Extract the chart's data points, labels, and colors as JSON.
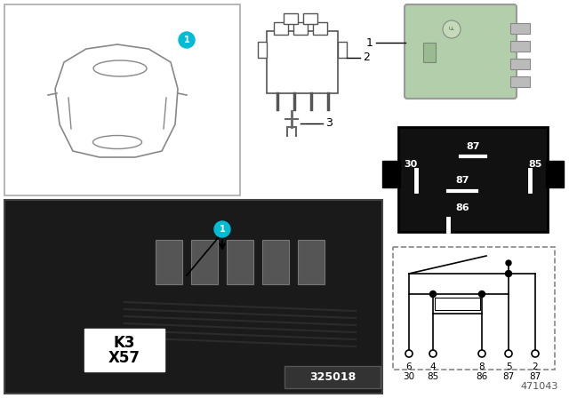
{
  "bg_color": "#ffffff",
  "bubble_color": "#00bcd4",
  "bubble_text_color": "#ffffff",
  "relay_green": "#b2ceaa",
  "black_box_color": "#111111",
  "image_id": "325018",
  "doc_id": "471043",
  "k3_label": "K3",
  "x57_label": "X57",
  "car_ec": "#888888",
  "connector_ec": "#555555",
  "photo_bg": "#1a1a1a",
  "photo_border": "#444444",
  "white": "#ffffff",
  "gray_label": "#555555"
}
